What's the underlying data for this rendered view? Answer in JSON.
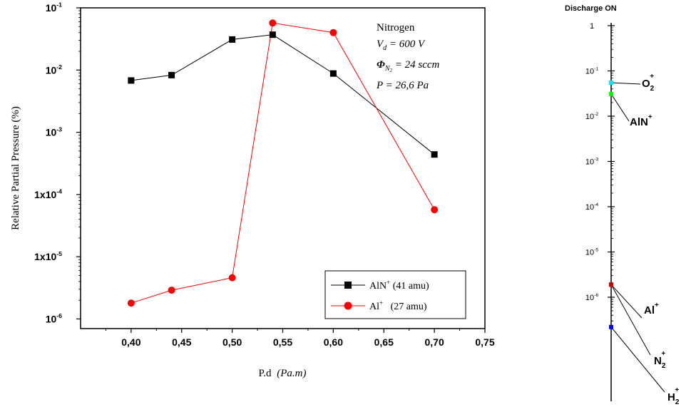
{
  "chart_data": [
    {
      "type": "line",
      "title": "",
      "xlabel": "P.d",
      "xlabel_unit": "(Pa.m)",
      "ylabel": "Relative Partial Pressure (%)",
      "y_scale": "log",
      "xlim": [
        0.35,
        0.75
      ],
      "ylim": [
        7e-07,
        0.1
      ],
      "x_ticks": [
        0.4,
        0.45,
        0.5,
        0.55,
        0.6,
        0.65,
        0.7,
        0.75
      ],
      "x_tick_labels": [
        "0,40",
        "0,45",
        "0,50",
        "0,55",
        "0,60",
        "0,65",
        "0,70",
        "0,75"
      ],
      "y_ticks": [
        1e-06,
        1e-05,
        0.0001,
        0.001,
        0.01,
        0.1
      ],
      "y_tick_labels": [
        {
          "base": "10",
          "exp": "-6"
        },
        {
          "base": "1x10",
          "exp": "-5"
        },
        {
          "base": "1x10",
          "exp": "-4"
        },
        {
          "base": "10",
          "exp": "-3"
        },
        {
          "base": "10",
          "exp": "-2"
        },
        {
          "base": "10",
          "exp": "-1"
        }
      ],
      "grid": false,
      "legend_position": "bottom-right",
      "annotation": {
        "gas": "Nitrogen",
        "vd_sym": "V",
        "vd_sub": "d",
        "vd_val": " = 600 V",
        "phi_sym": "Φ",
        "phi_sub1": "N",
        "phi_sub2": "2",
        "phi_val": " = 24 sccm",
        "p_line": "P = 26,6 Pa"
      },
      "series": [
        {
          "name": "AlN",
          "name_sup": "+",
          "name_detail": " (41 amu)",
          "color": "#000000",
          "marker": "square",
          "x": [
            0.4,
            0.44,
            0.5,
            0.54,
            0.6,
            0.7
          ],
          "y": [
            0.0068,
            0.0083,
            0.031,
            0.037,
            0.0088,
            0.00044
          ]
        },
        {
          "name": "Al",
          "name_sup": "+",
          "name_detail": "   (27 amu)",
          "color": "#ff0000",
          "marker": "circle",
          "x": [
            0.4,
            0.44,
            0.5,
            0.54,
            0.6,
            0.7
          ],
          "y": [
            1.8e-06,
            2.9e-06,
            4.6e-06,
            0.057,
            0.04,
            5.7e-05
          ]
        }
      ]
    },
    {
      "type": "scatter",
      "title": "Discharge ON",
      "y_scale": "log",
      "ylim": [
        1e-07,
        1
      ],
      "y_ticks": [
        1,
        0.1,
        0.01,
        0.001,
        0.0001,
        1e-05,
        1e-06
      ],
      "y_tick_labels": [
        {
          "base": "1",
          "exp": ""
        },
        {
          "base": "10",
          "exp": "-1"
        },
        {
          "base": "10",
          "exp": "-2"
        },
        {
          "base": "10",
          "exp": "-3"
        },
        {
          "base": "10",
          "exp": "-4"
        },
        {
          "base": "10",
          "exp": "-5"
        },
        {
          "base": "10",
          "exp": "-6"
        }
      ],
      "species": [
        {
          "label": "O",
          "sub": "2",
          "sup": "+",
          "y": 0.055,
          "color": "#00e5ff"
        },
        {
          "label": "AlN",
          "sub": "",
          "sup": "+",
          "y": 0.031,
          "color": "#00ff00"
        },
        {
          "label": "Al",
          "sub": "",
          "sup": "+",
          "y": 1.9e-06,
          "color": "#cc0000"
        },
        {
          "label": "N",
          "sub": "2",
          "sup": "+",
          "y": 1.9e-06,
          "color": "#cc0000"
        },
        {
          "label": "H",
          "sub": "2",
          "sup": "+",
          "y": 2.2e-07,
          "color": "#0000ff"
        }
      ]
    }
  ]
}
